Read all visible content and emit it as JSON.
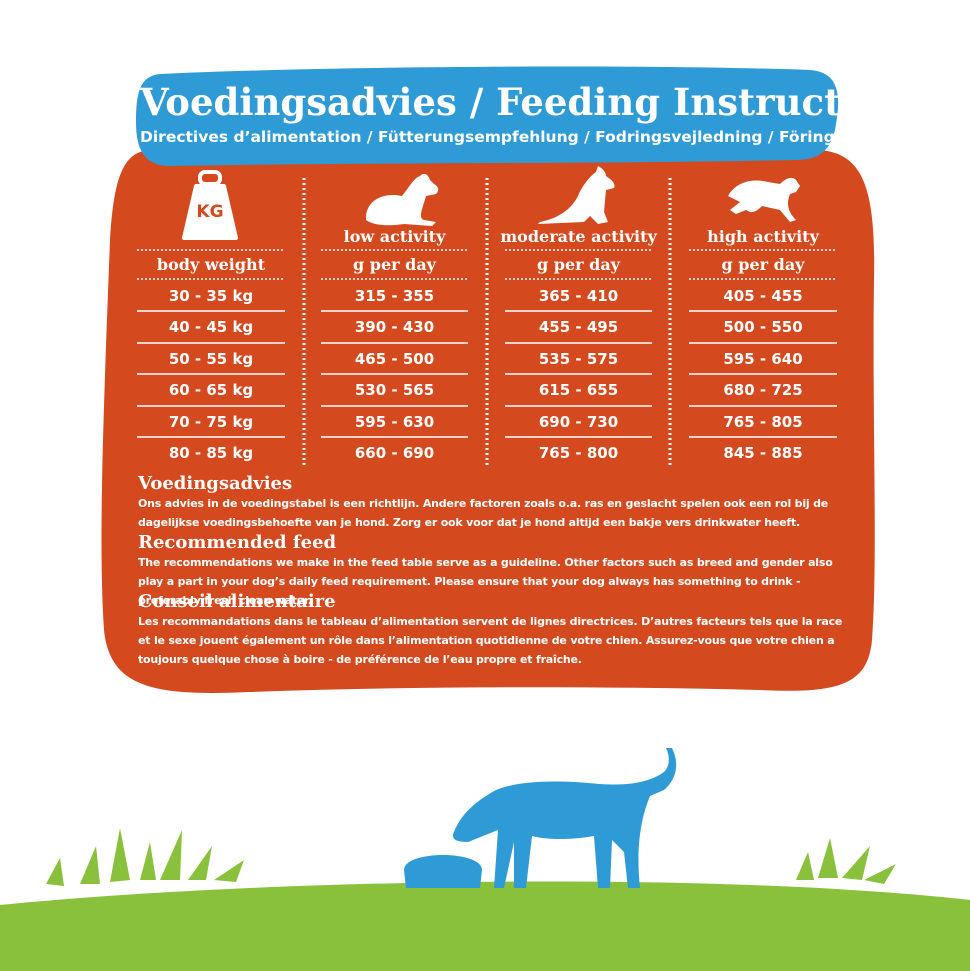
{
  "header": {
    "title": "Voedingsadvies / Feeding Instruction",
    "subtitle": "Directives d’alimentation / Fütterungsempfehlung / Fodringsvejledning / Föring"
  },
  "icons": {
    "weight": "kg-weight-icon",
    "low": "lying-dog-icon",
    "moderate": "sitting-dog-icon",
    "high": "running-dog-icon",
    "weight_label": "KG"
  },
  "table": {
    "columns": [
      {
        "top": "",
        "label": "body weight"
      },
      {
        "top": "low activity",
        "label": "g per day"
      },
      {
        "top": "moderate activity",
        "label": "g per day"
      },
      {
        "top": "high activity",
        "label": "g per day"
      }
    ],
    "rows": [
      [
        "30 - 35 kg",
        "315 - 355",
        "365 - 410",
        "405 - 455"
      ],
      [
        "40 - 45 kg",
        "390 - 430",
        "455 - 495",
        "500 - 550"
      ],
      [
        "50 - 55 kg",
        "465 - 500",
        "535 - 575",
        "595 - 640"
      ],
      [
        "60 - 65 kg",
        "530 - 565",
        "615 - 655",
        "680 - 725"
      ],
      [
        "70 - 75 kg",
        "595 - 630",
        "690 - 730",
        "765 - 805"
      ],
      [
        "80 - 85 kg",
        "660 - 690",
        "765 - 800",
        "845 - 885"
      ]
    ]
  },
  "sections": [
    {
      "title": "Voedingsadvies",
      "body": "Ons advies in de voedingstabel is een richtlijn. Andere factoren zoals o.a. ras en geslacht spelen ook een rol bij de dagelijkse voedingsbehoefte van je hond. Zorg er ook voor dat je hond altijd een bakje vers drinkwater heeft."
    },
    {
      "title": "Recommended feed",
      "body": "The recommendations we make in the feed table serve as a guideline. Other factors such as breed and gender also play a part in your dog’s daily feed requirement. Please ensure that your dog always has something to drink - preferably fresh clean water."
    },
    {
      "title": "Conseil alimentaire",
      "body": "Les recommandations dans le tableau d’alimentation servent de lignes directrices. D’autres facteurs tels que la race et le sexe jouent également un rôle dans l’alimentation quotidienne de votre chien. Assurez-vous que votre chien a toujours quelque chose à boire - de préférence de l’eau propre et fraîche."
    }
  ],
  "colors": {
    "orange": "#d5491e",
    "blue": "#2e9bd6",
    "green": "#8ac13c",
    "white": "#ffffff"
  }
}
